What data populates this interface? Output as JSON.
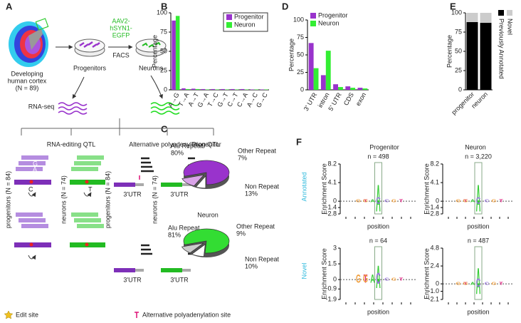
{
  "panel_labels": [
    "A",
    "B",
    "C",
    "D",
    "E",
    "F"
  ],
  "panel_a": {
    "cortex": [
      "Developing",
      "human cortex",
      "(N = 89)"
    ],
    "virus": [
      "AAV2-",
      "hSYN1-",
      "EGFP"
    ],
    "facs": "FACS",
    "progenitors": "Progenitors",
    "neurons": "Neurons",
    "rnaseq": "RNA-seq",
    "editing_title": "RNA-editing QTL",
    "apa_title": "Alternative polyadenylation QTL",
    "groups": [
      "progenitors (N = 84)",
      "neurons (N = 74)",
      "progenitors (N = 84)",
      "neurons (N = 74)"
    ],
    "bases": [
      "G",
      "A",
      "C",
      "T"
    ],
    "utr": "3'UTR",
    "legend": [
      "Edit site",
      "Alternative polyadenylation site"
    ]
  },
  "chart_data": [
    {
      "type": "bar",
      "ylabel": "Percentage",
      "categories": [
        "A→G",
        "T→A",
        "A→T",
        "G→A",
        "T→C",
        "G→T",
        "C→T",
        "C→A",
        "A→C",
        "G→C"
      ],
      "series": [
        {
          "name": "Progenitor",
          "color": "#9933cc",
          "values": [
            90,
            2,
            1.5,
            1,
            1,
            1,
            1,
            1,
            0.5,
            0.5
          ]
        },
        {
          "name": "Neuron",
          "color": "#33ee33",
          "values": [
            96,
            1,
            1,
            0.5,
            0.5,
            0.5,
            0.5,
            0.5,
            0.5,
            0.5
          ]
        }
      ],
      "ylim": [
        0,
        100
      ],
      "yticks": [
        0,
        25,
        50,
        75,
        100
      ],
      "legend": "top-right"
    },
    {
      "type": "pie",
      "title": "Progenitor",
      "labels": [
        "Alu Repeat",
        "Other Repeat",
        "Non Repeat"
      ],
      "values": [
        80,
        7,
        13
      ],
      "value_labels": [
        "80%",
        "7%",
        "13%"
      ],
      "colors": [
        "#9933cc",
        "#ffffff",
        "#d9a3e8"
      ]
    },
    {
      "type": "pie",
      "title": "Neuron",
      "labels": [
        "Alu Repeat",
        "Other Repeat",
        "Non Repeat"
      ],
      "values": [
        81,
        9,
        10
      ],
      "value_labels": [
        "81%",
        "9%",
        "10%"
      ],
      "colors": [
        "#33dd33",
        "#ffffff",
        "#cccccc"
      ]
    },
    {
      "type": "bar",
      "ylabel": "Percentage",
      "categories": [
        "3' UTR",
        "intron",
        "5' UTR",
        "CDS",
        "exon"
      ],
      "series": [
        {
          "name": "Progenitor",
          "color": "#9933cc",
          "values": [
            67,
            21,
            8,
            5,
            3
          ]
        },
        {
          "name": "Neuron",
          "color": "#33ee33",
          "values": [
            31,
            56,
            4,
            3,
            2
          ]
        }
      ],
      "ylim": [
        0,
        100
      ],
      "yticks": [
        0,
        25,
        50,
        75,
        100
      ],
      "legend": "top-left"
    },
    {
      "type": "stacked-bar",
      "ylabel": "Percentage",
      "categories": [
        "progenitor",
        "neuron"
      ],
      "series": [
        {
          "name": "Previously Annotated",
          "color": "#000000",
          "values": [
            88,
            87
          ]
        },
        {
          "name": "Novel",
          "color": "#cccccc",
          "values": [
            12,
            13
          ]
        }
      ],
      "ylim": [
        0,
        100
      ],
      "yticks": [
        0,
        25,
        50,
        75,
        100
      ]
    }
  ],
  "panel_f": {
    "columns": [
      "Progenitor",
      "Neuron"
    ],
    "rows": [
      "Annotated",
      "Novel"
    ],
    "ylabel": "Enrichment Score",
    "xlabel": "position",
    "letters": [
      "A",
      "C",
      "G",
      "T"
    ],
    "plots": [
      {
        "title": "n = 498",
        "ylim": [
          -2.8,
          8.2
        ],
        "yticks": [
          8.2,
          4.1,
          0,
          -1.4,
          -2.8
        ]
      },
      {
        "title": "n = 3,220",
        "ylim": [
          -2.8,
          8.2
        ],
        "yticks": [
          8.2,
          4.1,
          0,
          -1.4,
          -2.8
        ]
      },
      {
        "title": "n = 64",
        "ylim": [
          -1.9,
          3
        ],
        "yticks": [
          3,
          1.5,
          0,
          -0.9,
          -1.9
        ]
      },
      {
        "title": "n = 487",
        "ylim": [
          -2.1,
          4.8
        ],
        "yticks": [
          4.8,
          2.4,
          0,
          {
            "value": -1,
            "label": "-1.0"
          },
          -2.1
        ]
      }
    ]
  }
}
